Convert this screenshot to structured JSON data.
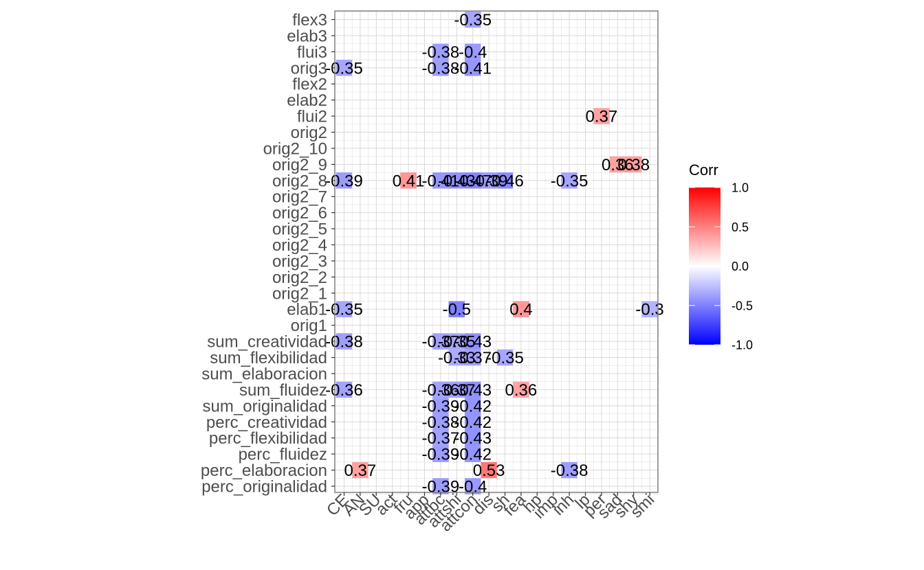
{
  "chart_data": {
    "type": "heatmap",
    "x_categories": [
      "CE",
      "AN",
      "SU",
      "act",
      "fru",
      "app",
      "attbc",
      "attshi",
      "attcon",
      "dis",
      "sh",
      "fea",
      "hp",
      "imp",
      "inh",
      "lp",
      "per",
      "sad",
      "shy",
      "smi"
    ],
    "y_categories": [
      "flex3",
      "elab3",
      "flui3",
      "orig3",
      "flex2",
      "elab2",
      "flui2",
      "orig2",
      "orig2_10",
      "orig2_9",
      "orig2_8",
      "orig2_7",
      "orig2_6",
      "orig2_5",
      "orig2_4",
      "orig2_3",
      "orig2_2",
      "orig2_1",
      "elab1",
      "orig1",
      "sum_creatividad",
      "sum_flexibilidad",
      "sum_elaboracion",
      "sum_fluidez",
      "sum_originalidad",
      "perc_creatividad",
      "perc_flexibilidad",
      "perc_fluidez",
      "perc_elaboracion",
      "perc_originalidad"
    ],
    "cells": [
      {
        "x": "attcon",
        "y": "flex3",
        "value": -0.35
      },
      {
        "x": "attbc",
        "y": "flui3",
        "value": -0.38
      },
      {
        "x": "attcon",
        "y": "flui3",
        "value": -0.4
      },
      {
        "x": "CE",
        "y": "orig3",
        "value": -0.35
      },
      {
        "x": "attbc",
        "y": "orig3",
        "value": -0.38
      },
      {
        "x": "attcon",
        "y": "orig3",
        "value": -0.41
      },
      {
        "x": "per",
        "y": "flui2",
        "value": 0.37
      },
      {
        "x": "sad",
        "y": "orig2_9",
        "value": 0.36
      },
      {
        "x": "shy",
        "y": "orig2_9",
        "value": 0.38
      },
      {
        "x": "CE",
        "y": "orig2_8",
        "value": -0.39
      },
      {
        "x": "fru",
        "y": "orig2_8",
        "value": 0.41
      },
      {
        "x": "attbc",
        "y": "orig2_8",
        "value": -0.41
      },
      {
        "x": "attshi",
        "y": "orig2_8",
        "value": -0.43
      },
      {
        "x": "attcon",
        "y": "orig2_8",
        "value": -0.47
      },
      {
        "x": "dis",
        "y": "orig2_8",
        "value": -0.39
      },
      {
        "x": "sh",
        "y": "orig2_8",
        "value": -0.46
      },
      {
        "x": "inh",
        "y": "orig2_8",
        "value": -0.35
      },
      {
        "x": "CE",
        "y": "elab1",
        "value": -0.35
      },
      {
        "x": "attshi",
        "y": "elab1",
        "value": -0.5
      },
      {
        "x": "fea",
        "y": "elab1",
        "value": 0.4
      },
      {
        "x": "smi",
        "y": "elab1",
        "value": -0.3
      },
      {
        "x": "CE",
        "y": "sum_creatividad",
        "value": -0.38
      },
      {
        "x": "attbc",
        "y": "sum_creatividad",
        "value": -0.37
      },
      {
        "x": "attshi",
        "y": "sum_creatividad",
        "value": -0.35
      },
      {
        "x": "attcon",
        "y": "sum_creatividad",
        "value": -0.43
      },
      {
        "x": "attshi",
        "y": "sum_flexibilidad",
        "value": -0.33
      },
      {
        "x": "attcon",
        "y": "sum_flexibilidad",
        "value": -0.37
      },
      {
        "x": "sh",
        "y": "sum_flexibilidad",
        "value": -0.35
      },
      {
        "x": "CE",
        "y": "sum_fluidez",
        "value": -0.36
      },
      {
        "x": "attbc",
        "y": "sum_fluidez",
        "value": -0.36
      },
      {
        "x": "attshi",
        "y": "sum_fluidez",
        "value": -0.37
      },
      {
        "x": "attcon",
        "y": "sum_fluidez",
        "value": -0.43
      },
      {
        "x": "fea",
        "y": "sum_fluidez",
        "value": 0.36
      },
      {
        "x": "attbc",
        "y": "sum_originalidad",
        "value": -0.39
      },
      {
        "x": "attcon",
        "y": "sum_originalidad",
        "value": -0.42
      },
      {
        "x": "attbc",
        "y": "perc_creatividad",
        "value": -0.38
      },
      {
        "x": "attcon",
        "y": "perc_creatividad",
        "value": -0.42
      },
      {
        "x": "attbc",
        "y": "perc_flexibilidad",
        "value": -0.37
      },
      {
        "x": "attcon",
        "y": "perc_flexibilidad",
        "value": -0.43
      },
      {
        "x": "attbc",
        "y": "perc_fluidez",
        "value": -0.39
      },
      {
        "x": "attcon",
        "y": "perc_fluidez",
        "value": -0.42
      },
      {
        "x": "AN",
        "y": "perc_elaboracion",
        "value": 0.37
      },
      {
        "x": "dis",
        "y": "perc_elaboracion",
        "value": 0.53
      },
      {
        "x": "inh",
        "y": "perc_elaboracion",
        "value": -0.38
      },
      {
        "x": "attbc",
        "y": "perc_originalidad",
        "value": -0.39
      },
      {
        "x": "attcon",
        "y": "perc_originalidad",
        "value": -0.4
      }
    ],
    "legend": {
      "title": "Corr",
      "ticks": [
        "1.0",
        "0.5",
        "0.0",
        "-0.5",
        "-1.0"
      ],
      "tick_values": [
        1.0,
        0.5,
        0.0,
        -0.5,
        -1.0
      ],
      "low_color": "#0000FF",
      "mid_color": "#FFFFFF",
      "high_color": "#FF0000",
      "limits": [
        -1,
        1
      ],
      "placement": "right"
    },
    "panel_border_color": "#7f7f7f",
    "grid_color": "#d9d9d9",
    "grid": true
  }
}
